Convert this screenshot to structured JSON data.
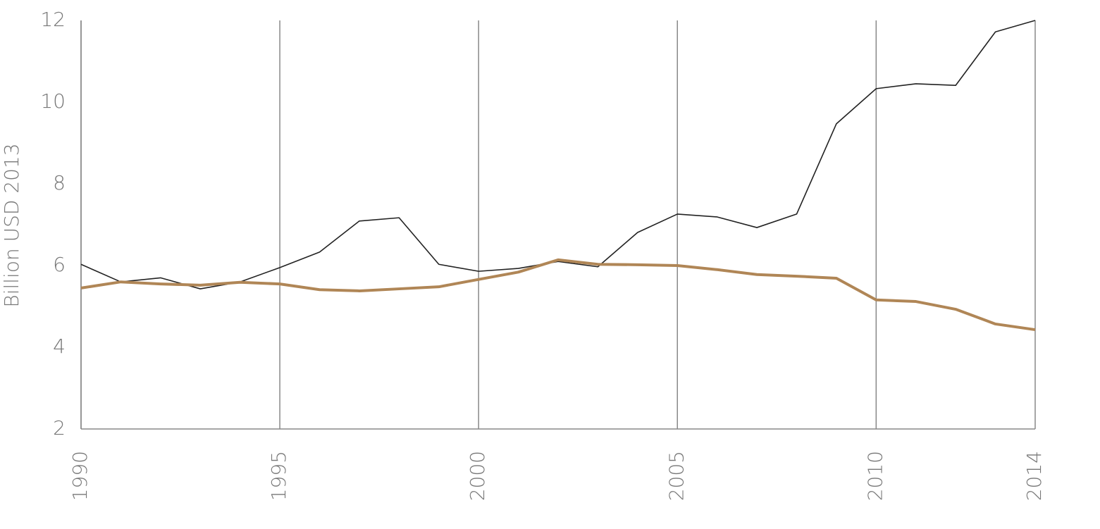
{
  "chart_data": {
    "type": "line",
    "y_label": "Billion USD 2013",
    "x": [
      1990,
      1991,
      1992,
      1993,
      1994,
      1995,
      1996,
      1997,
      1998,
      1999,
      2000,
      2001,
      2002,
      2003,
      2004,
      2005,
      2006,
      2007,
      2008,
      2009,
      2010,
      2011,
      2012,
      2013,
      2014
    ],
    "series": [
      {
        "color": "#222222",
        "width": 1.6,
        "values": [
          6.03,
          5.6,
          5.7,
          5.43,
          5.6,
          5.95,
          6.33,
          7.09,
          7.17,
          6.03,
          5.86,
          5.93,
          6.1,
          5.97,
          6.81,
          7.26,
          7.19,
          6.93,
          7.26,
          9.47,
          10.33,
          10.45,
          10.41,
          11.72,
          12.0
        ]
      },
      {
        "color": "#b08656",
        "width": 4,
        "values": [
          5.45,
          5.6,
          5.55,
          5.52,
          5.59,
          5.55,
          5.41,
          5.38,
          5.43,
          5.48,
          5.66,
          5.84,
          6.14,
          6.03,
          6.02,
          6.0,
          5.9,
          5.78,
          5.74,
          5.69,
          5.16,
          5.12,
          4.93,
          4.57,
          4.43
        ]
      }
    ],
    "xlim": [
      1990,
      2014
    ],
    "xticks": [
      1990,
      1995,
      2000,
      2005,
      2010,
      2014
    ],
    "ylim": [
      2,
      12
    ],
    "yticks": [
      2,
      4,
      6,
      8,
      10,
      12
    ],
    "grid": "x"
  }
}
